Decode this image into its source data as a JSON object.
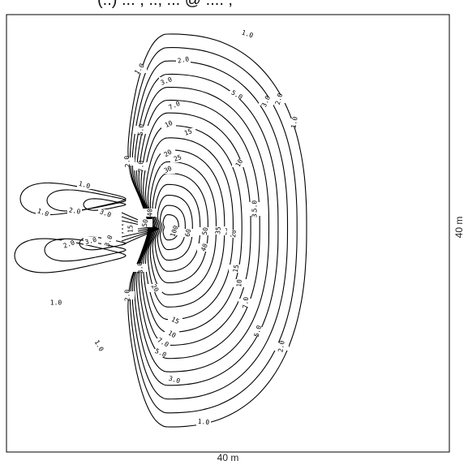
{
  "caption_partial": "(..)  ... ,  ..,  ... @ .... ,",
  "dimensions": {
    "width_label": "40 m",
    "height_label": "40 m"
  },
  "contour_levels": [
    "1.0",
    "2.0",
    "3.0",
    "5.0",
    "7.0",
    "10",
    "15",
    "20",
    "25",
    "30",
    "35",
    "40",
    "50",
    "60",
    "100"
  ],
  "contour_labels": [
    {
      "level": "1.0"
    },
    {
      "level": "1.0"
    },
    {
      "level": "1.0"
    },
    {
      "level": "1.0"
    },
    {
      "level": "1.0"
    },
    {
      "level": "1.0"
    },
    {
      "level": "1.0"
    },
    {
      "level": "1.0"
    },
    {
      "level": "2.0"
    },
    {
      "level": "2.0"
    },
    {
      "level": "2.0"
    },
    {
      "level": "2.0"
    },
    {
      "level": "2.0"
    },
    {
      "level": "2.0"
    },
    {
      "level": "2.0"
    },
    {
      "level": "3.0"
    },
    {
      "level": "3.0"
    },
    {
      "level": "3.0"
    },
    {
      "level": "3.0"
    },
    {
      "level": "3.0"
    },
    {
      "level": "3.0"
    },
    {
      "level": "3.0"
    },
    {
      "level": "3.0"
    },
    {
      "level": "5.0"
    },
    {
      "level": "5.0"
    },
    {
      "level": "5.0"
    },
    {
      "level": "5.0"
    },
    {
      "level": "5.0"
    },
    {
      "level": "7.0"
    },
    {
      "level": "7.0"
    },
    {
      "level": "7.0"
    },
    {
      "level": "7.0"
    },
    {
      "level": "10"
    },
    {
      "level": "10"
    },
    {
      "level": "10"
    },
    {
      "level": "10"
    },
    {
      "level": "15"
    },
    {
      "level": "15"
    },
    {
      "level": "15"
    },
    {
      "level": "15"
    },
    {
      "level": "20"
    },
    {
      "level": "20"
    },
    {
      "level": "20"
    },
    {
      "level": "25"
    },
    {
      "level": "25"
    },
    {
      "level": "30"
    },
    {
      "level": "35"
    },
    {
      "level": "40"
    },
    {
      "level": "40"
    },
    {
      "level": "50"
    },
    {
      "level": "50"
    },
    {
      "level": "60"
    },
    {
      "level": "100"
    }
  ]
}
